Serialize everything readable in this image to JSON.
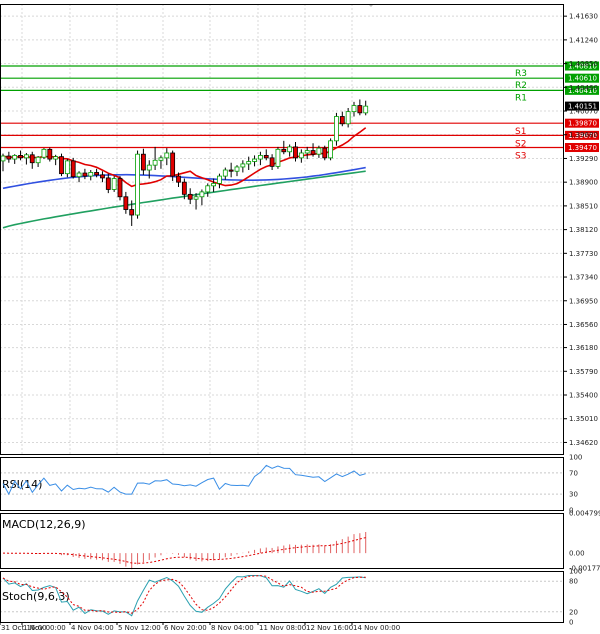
{
  "chart_data": {
    "type": "candlestick",
    "instrument_price_last": "1.40151",
    "y_ticks": [
      "1.41630",
      "1.41240",
      "1.40850",
      "1.40460",
      "1.40070",
      "1.39680",
      "1.39290",
      "1.38900",
      "1.38510",
      "1.38120",
      "1.37730",
      "1.37340",
      "1.36950",
      "1.36560",
      "1.36180",
      "1.35790",
      "1.35400",
      "1.35010",
      "1.34620"
    ],
    "ylim": [
      1.3443,
      1.4183
    ],
    "x_ticks": [
      "31 Oct 16:00",
      "1 Nov 00:00",
      "4 Nov 04:00",
      "5 Nov 12:00",
      "6 Nov 20:00",
      "8 Nov 04:00",
      "11 Nov 08:00",
      "12 Nov 16:00",
      "14 Nov 00:00"
    ],
    "levels": [
      {
        "name": "R3",
        "value": 1.4081,
        "label": "1.40810",
        "color": "#00a000"
      },
      {
        "name": "R2",
        "value": 1.4061,
        "label": "1.40610",
        "color": "#00a000"
      },
      {
        "name": "R1",
        "value": 1.4041,
        "label": "1.40410",
        "color": "#00a000"
      },
      {
        "name": "S1",
        "value": 1.3987,
        "label": "1.39870",
        "color": "#e00000"
      },
      {
        "name": "S2",
        "value": 1.3967,
        "label": "1.39670",
        "color": "#e00000"
      },
      {
        "name": "S3",
        "value": 1.3947,
        "label": "1.39470",
        "color": "#e00000"
      }
    ],
    "last_price_value": 1.40151,
    "candles": [
      [
        1.3925,
        1.3937,
        1.3908,
        1.3933
      ],
      [
        1.3933,
        1.394,
        1.3922,
        1.3928
      ],
      [
        1.3928,
        1.3936,
        1.392,
        1.3934
      ],
      [
        1.3934,
        1.3942,
        1.3926,
        1.393
      ],
      [
        1.393,
        1.3938,
        1.3919,
        1.3935
      ],
      [
        1.3935,
        1.394,
        1.3912,
        1.3922
      ],
      [
        1.3922,
        1.3933,
        1.3915,
        1.3931
      ],
      [
        1.3931,
        1.3946,
        1.3928,
        1.3944
      ],
      [
        1.3944,
        1.3947,
        1.3924,
        1.3928
      ],
      [
        1.3928,
        1.3935,
        1.3918,
        1.3932
      ],
      [
        1.3932,
        1.3937,
        1.39,
        1.3904
      ],
      [
        1.3904,
        1.3928,
        1.3898,
        1.3925
      ],
      [
        1.3925,
        1.393,
        1.3896,
        1.3899
      ],
      [
        1.3899,
        1.3908,
        1.389,
        1.3905
      ],
      [
        1.3905,
        1.3912,
        1.3895,
        1.39
      ],
      [
        1.39,
        1.391,
        1.3893,
        1.3906
      ],
      [
        1.3906,
        1.3912,
        1.3898,
        1.3902
      ],
      [
        1.3902,
        1.3908,
        1.389,
        1.3897
      ],
      [
        1.3897,
        1.3904,
        1.3872,
        1.3878
      ],
      [
        1.3878,
        1.39,
        1.3874,
        1.3896
      ],
      [
        1.3896,
        1.39,
        1.386,
        1.3866
      ],
      [
        1.3866,
        1.3874,
        1.3838,
        1.3845
      ],
      [
        1.3845,
        1.386,
        1.3818,
        1.3836
      ],
      [
        1.3836,
        1.3942,
        1.383,
        1.3936
      ],
      [
        1.3936,
        1.3945,
        1.3902,
        1.391
      ],
      [
        1.391,
        1.3926,
        1.3896,
        1.3918
      ],
      [
        1.3918,
        1.3948,
        1.391,
        1.3926
      ],
      [
        1.3926,
        1.3934,
        1.3912,
        1.393
      ],
      [
        1.393,
        1.3946,
        1.3918,
        1.3938
      ],
      [
        1.3938,
        1.3942,
        1.3892,
        1.39
      ],
      [
        1.39,
        1.3906,
        1.3882,
        1.389
      ],
      [
        1.389,
        1.3896,
        1.3862,
        1.387
      ],
      [
        1.387,
        1.388,
        1.3854,
        1.3862
      ],
      [
        1.3862,
        1.3872,
        1.3845,
        1.3866
      ],
      [
        1.3866,
        1.3878,
        1.3852,
        1.3874
      ],
      [
        1.3874,
        1.3888,
        1.3866,
        1.3884
      ],
      [
        1.3884,
        1.3896,
        1.3874,
        1.3888
      ],
      [
        1.3888,
        1.3904,
        1.388,
        1.39
      ],
      [
        1.39,
        1.3914,
        1.3894,
        1.391
      ],
      [
        1.391,
        1.3922,
        1.3898,
        1.3908
      ],
      [
        1.3908,
        1.3918,
        1.39,
        1.3915
      ],
      [
        1.3915,
        1.3926,
        1.3906,
        1.392
      ],
      [
        1.392,
        1.3932,
        1.391,
        1.3924
      ],
      [
        1.3924,
        1.3934,
        1.3916,
        1.3928
      ],
      [
        1.3928,
        1.394,
        1.3918,
        1.3934
      ],
      [
        1.3934,
        1.3944,
        1.3926,
        1.393
      ],
      [
        1.393,
        1.3936,
        1.391,
        1.3916
      ],
      [
        1.3916,
        1.3948,
        1.3912,
        1.3944
      ],
      [
        1.3944,
        1.3958,
        1.3936,
        1.394
      ],
      [
        1.394,
        1.3952,
        1.3932,
        1.3948
      ],
      [
        1.3948,
        1.3956,
        1.3924,
        1.393
      ],
      [
        1.393,
        1.3944,
        1.3922,
        1.3938
      ],
      [
        1.3938,
        1.3948,
        1.3928,
        1.3942
      ],
      [
        1.3942,
        1.3954,
        1.3932,
        1.3936
      ],
      [
        1.3936,
        1.395,
        1.393,
        1.3946
      ],
      [
        1.3946,
        1.395,
        1.3926,
        1.393
      ],
      [
        1.393,
        1.3962,
        1.3926,
        1.3958
      ],
      [
        1.3958,
        1.4004,
        1.395,
        1.3998
      ],
      [
        1.3998,
        1.4006,
        1.3982,
        1.3986
      ],
      [
        1.3986,
        1.4012,
        1.398,
        1.4006
      ],
      [
        1.4006,
        1.4022,
        1.3998,
        1.4016
      ],
      [
        1.4016,
        1.4026,
        1.4,
        1.4004
      ],
      [
        1.4004,
        1.4024,
        1.4,
        1.4015
      ]
    ],
    "ma_red_label": "",
    "indicators": {
      "rsi": {
        "label": "RSI(14)",
        "ticks": [
          "100",
          "70",
          "30",
          "0"
        ],
        "ylim": [
          0,
          100
        ]
      },
      "macd": {
        "label": "MACD(12,26,9)",
        "ticks": [
          "0.004799",
          "0.00",
          "-0.001778"
        ],
        "ylim": [
          -0.001778,
          0.004799
        ]
      },
      "stoch": {
        "label": "Stoch(9,6,3)",
        "ticks": [
          "100",
          "80",
          "20",
          "0"
        ],
        "ylim": [
          0,
          100
        ]
      }
    },
    "colors": {
      "bull": "#00a000",
      "bear": "#e00000",
      "ma_red": "#e00000",
      "ma_blue": "#3050e0",
      "ma_green": "#20a060",
      "rsi_line": "#3a8ee6",
      "macd_hist": "#e06060",
      "macd_signal": "#e00000",
      "stoch_k": "#2aa0b0",
      "stoch_d": "#e00000",
      "grid": "#d8d8d8",
      "axis": "#000000"
    }
  }
}
